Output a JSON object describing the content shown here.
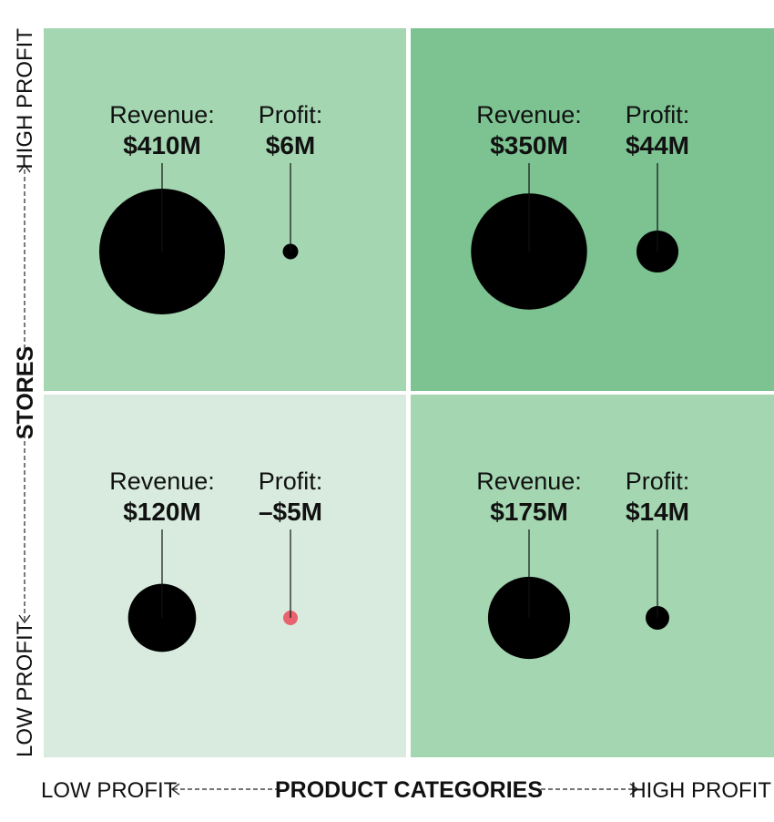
{
  "chart_data": {
    "type": "bubble-quadrant",
    "x_axis": {
      "title": "PRODUCT CATEGORIES",
      "low_label": "LOW PROFIT",
      "high_label": "HIGH PROFIT"
    },
    "y_axis": {
      "title": "STORES",
      "low_label": "LOW PROFIT",
      "high_label": "HIGH PROFIT"
    },
    "metric_labels": {
      "revenue": "Revenue:",
      "profit": "Profit:"
    },
    "quadrants": [
      {
        "id": "high-stores-low-categories",
        "stores": "high",
        "categories": "low",
        "color": "#a4d6b1",
        "revenue": 410,
        "revenue_label": "$410M",
        "profit": 6,
        "profit_label": "$6M"
      },
      {
        "id": "high-stores-high-categories",
        "stores": "high",
        "categories": "high",
        "color": "#7cc391",
        "revenue": 350,
        "revenue_label": "$350M",
        "profit": 44,
        "profit_label": "$44M"
      },
      {
        "id": "low-stores-low-categories",
        "stores": "low",
        "categories": "low",
        "color": "#d8ebde",
        "revenue": 120,
        "revenue_label": "$120M",
        "profit": -5,
        "profit_label": "–$5M"
      },
      {
        "id": "low-stores-high-categories",
        "stores": "low",
        "categories": "high",
        "color": "#a4d6b1",
        "revenue": 175,
        "revenue_label": "$175M",
        "profit": 14,
        "profit_label": "$14M"
      }
    ],
    "colors": {
      "positive_bubble": "#000000",
      "negative_bubble": "#e8636f"
    }
  }
}
